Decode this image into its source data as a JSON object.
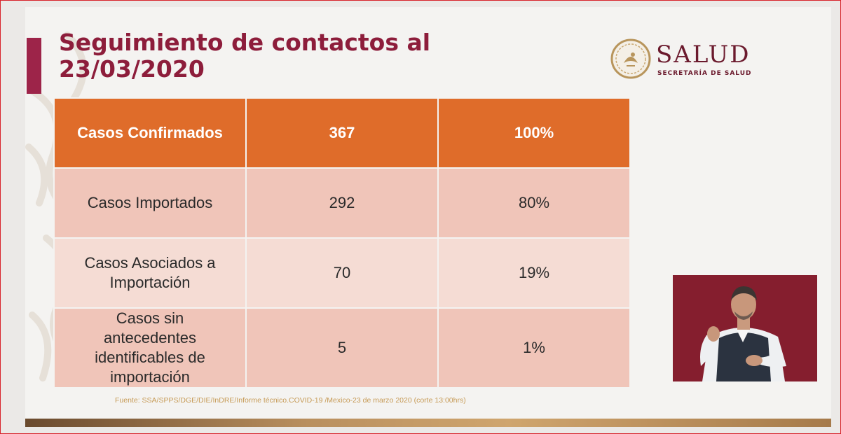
{
  "title": "Seguimiento de contactos al 23/03/2020",
  "logo": {
    "brand": "SALUD",
    "subtitle": "SECRETARÍA DE SALUD"
  },
  "table": {
    "header": [
      "Casos Confirmados",
      "367",
      "100%"
    ],
    "rows": [
      [
        "Casos Importados",
        "292",
        "80%"
      ],
      [
        "Casos Asociados a Importación",
        "70",
        "19%"
      ],
      [
        "Casos sin antecedentes identificables de importación",
        "5",
        "1%"
      ]
    ]
  },
  "source": "Fuente: SSA/SPPS/DGE/DIE/InDRE/Informe técnico.COVID-19 /Mexico-23 de marzo 2020 (corte 13:00hrs)",
  "colors": {
    "title": "#8d1d3b",
    "header_row": "#df6c2a",
    "row_dark": "#f0c5b9",
    "row_light": "#f5dcd4",
    "accent_bar": "#9d2449"
  }
}
